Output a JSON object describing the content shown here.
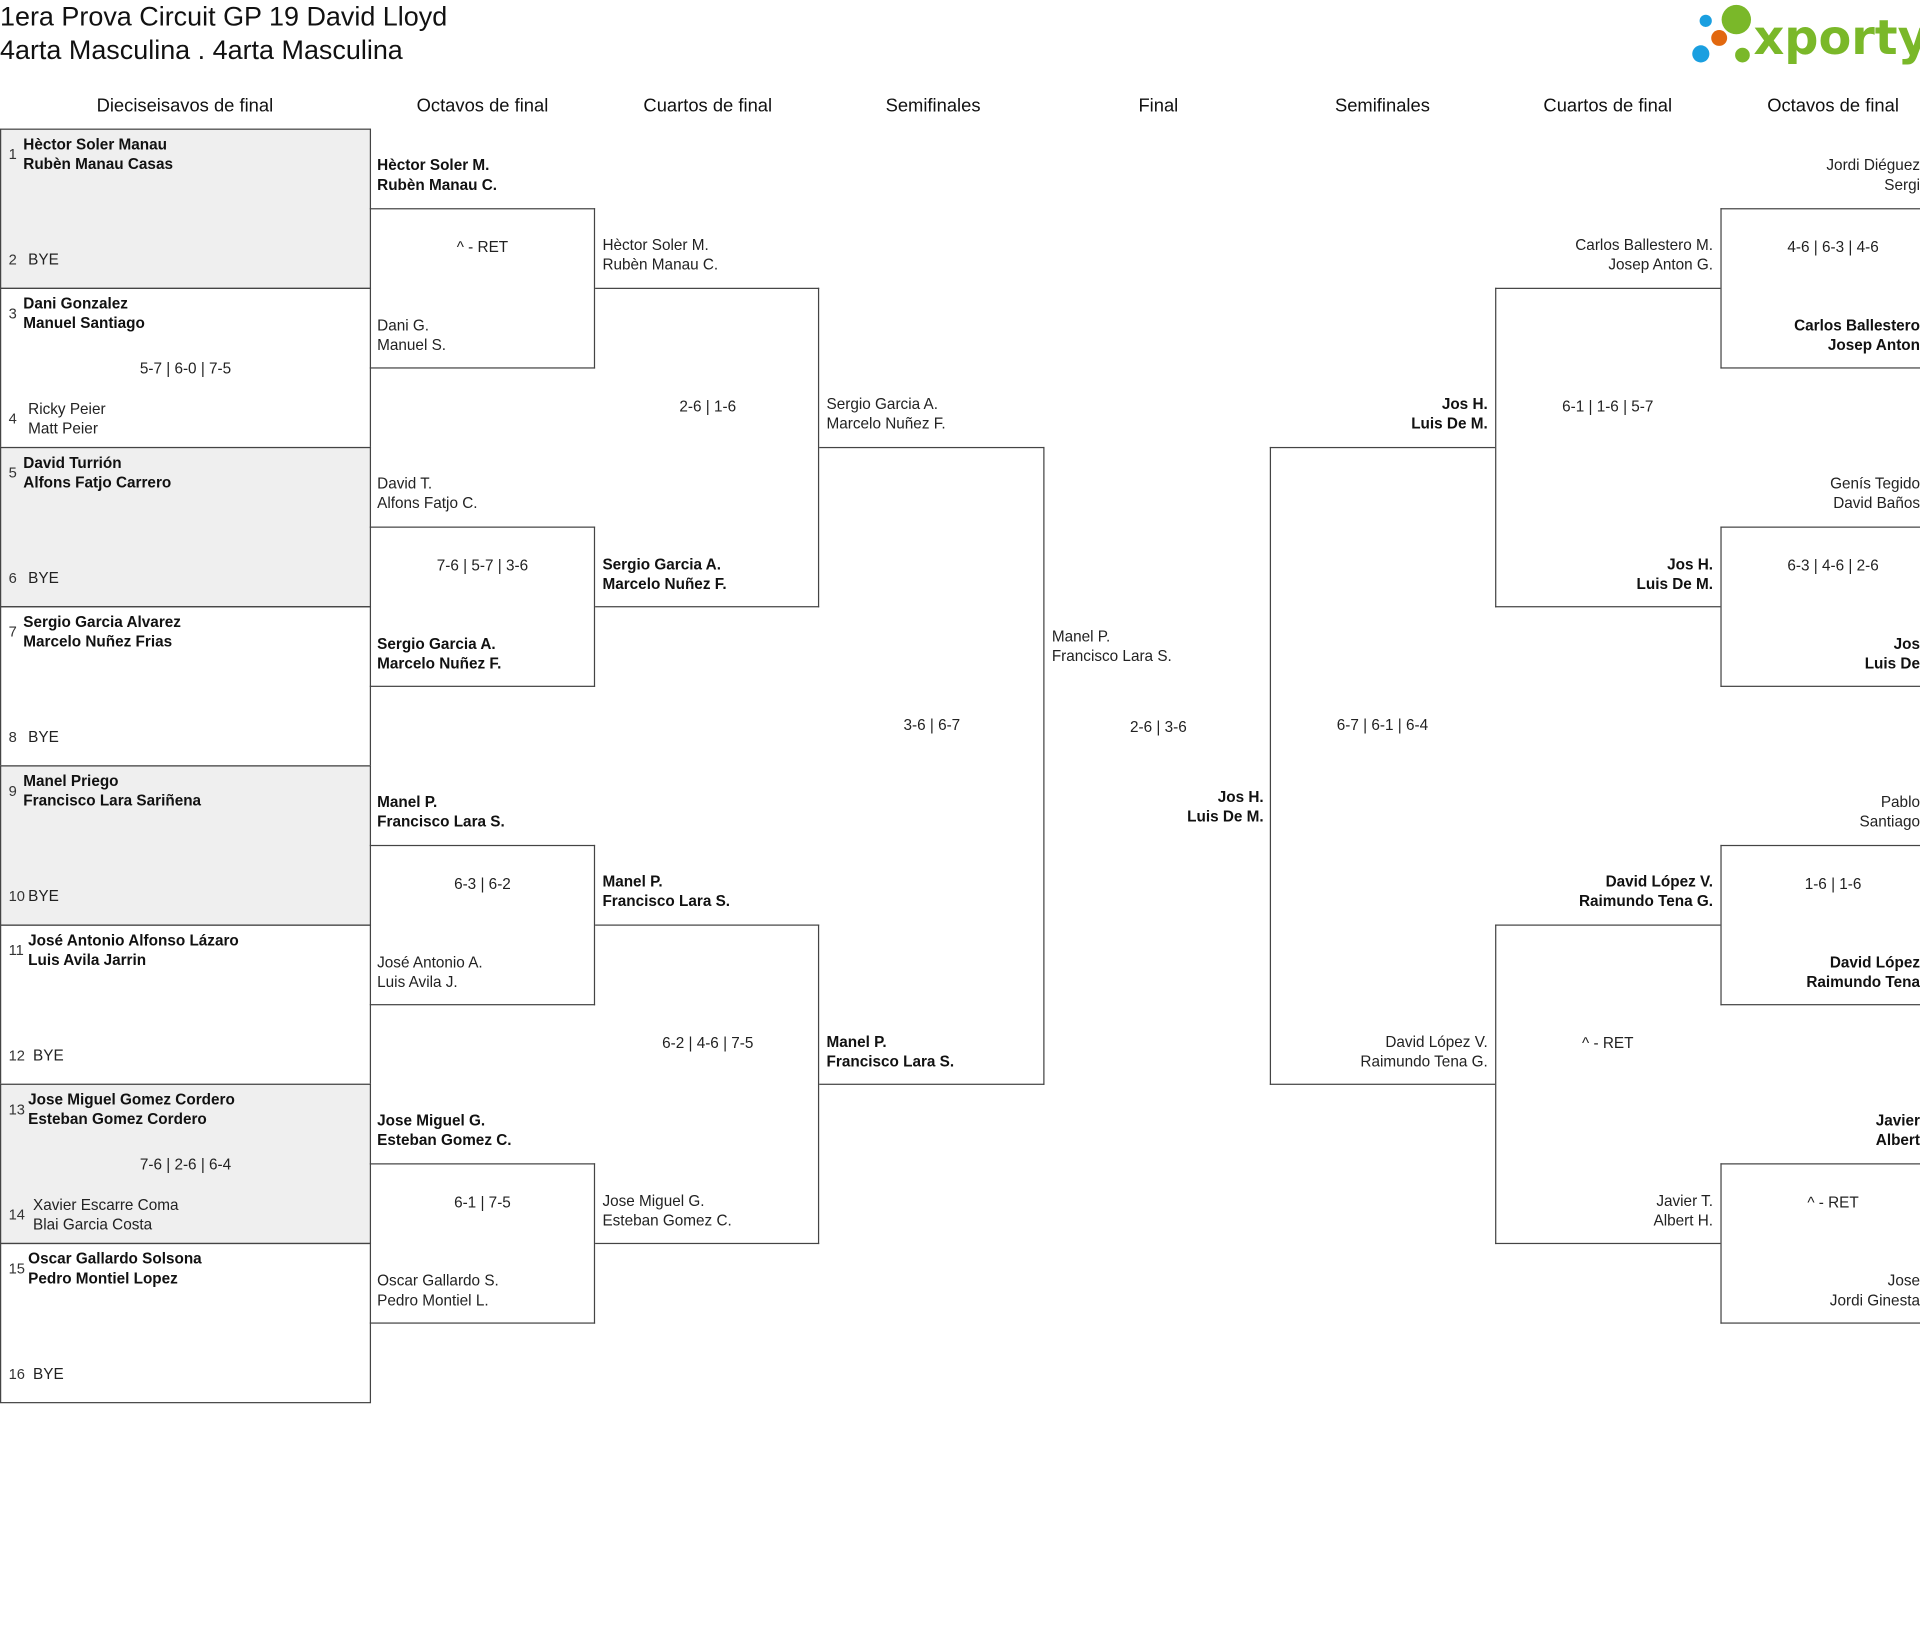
{
  "header": {
    "title": "1era Prova Circuit GP 19 David Lloyd",
    "subtitle": "4arta Masculina . 4arta Masculina"
  },
  "logo": {
    "text": "xporty",
    "colors": {
      "green": "#7ab829",
      "orange": "#e2680f",
      "blue": "#1a9fe0"
    }
  },
  "rounds": [
    "Dieciseisavos de final",
    "Octavos de final",
    "Cuartos de final",
    "Semifinales",
    "Final",
    "Semifinales",
    "Cuartos de final",
    "Octavos de final"
  ],
  "first_round": [
    {
      "shaded": true,
      "top": {
        "seed": "1",
        "names": [
          "Hèctor Soler Manau",
          "Rubèn Manau Casas"
        ],
        "bold": true
      },
      "bottom": {
        "seed": "2",
        "names": [
          "BYE"
        ],
        "bold": false
      },
      "score": ""
    },
    {
      "shaded": false,
      "top": {
        "seed": "3",
        "names": [
          "Dani Gonzalez",
          "Manuel Santiago"
        ],
        "bold": true
      },
      "bottom": {
        "seed": "4",
        "names": [
          "Ricky Peier",
          "Matt Peier"
        ],
        "bold": false
      },
      "score": "5-7 | 6-0 | 7-5"
    },
    {
      "shaded": true,
      "top": {
        "seed": "5",
        "names": [
          "David Turrión",
          "Alfons Fatjo Carrero"
        ],
        "bold": true
      },
      "bottom": {
        "seed": "6",
        "names": [
          "BYE"
        ],
        "bold": false
      },
      "score": ""
    },
    {
      "shaded": false,
      "top": {
        "seed": "7",
        "names": [
          "Sergio Garcia Alvarez",
          "Marcelo Nuñez Frias"
        ],
        "bold": true
      },
      "bottom": {
        "seed": "8",
        "names": [
          "BYE"
        ],
        "bold": false
      },
      "score": ""
    },
    {
      "shaded": true,
      "top": {
        "seed": "9",
        "names": [
          "Manel Priego",
          "Francisco Lara Sariñena"
        ],
        "bold": true
      },
      "bottom": {
        "seed": "10",
        "names": [
          "BYE"
        ],
        "bold": false
      },
      "score": ""
    },
    {
      "shaded": false,
      "top": {
        "seed": "11",
        "names": [
          "José Antonio Alfonso Lázaro",
          "Luis Avila Jarrin"
        ],
        "bold": true
      },
      "bottom": {
        "seed": "12",
        "names": [
          "BYE"
        ],
        "bold": false
      },
      "score": ""
    },
    {
      "shaded": true,
      "top": {
        "seed": "13",
        "names": [
          "Jose Miguel Gomez Cordero",
          "Esteban Gomez Cordero"
        ],
        "bold": true
      },
      "bottom": {
        "seed": "14",
        "names": [
          "Xavier Escarre Coma",
          "Blai Garcia Costa"
        ],
        "bold": false
      },
      "score": "7-6 | 2-6 | 6-4"
    },
    {
      "shaded": false,
      "top": {
        "seed": "15",
        "names": [
          "Oscar Gallardo Solsona",
          "Pedro Montiel Lopez"
        ],
        "bold": true
      },
      "bottom": {
        "seed": "16",
        "names": [
          "BYE"
        ],
        "bold": false
      },
      "score": ""
    }
  ],
  "left": {
    "octavos": [
      {
        "top": {
          "names": [
            "Hèctor Soler M.",
            "Rubèn Manau C."
          ],
          "bold": true
        },
        "bottom": {
          "names": [
            "Dani G.",
            "Manuel S."
          ],
          "bold": false
        },
        "score": "^ - RET"
      },
      {
        "top": {
          "names": [
            "David T.",
            "Alfons Fatjo C."
          ],
          "bold": false
        },
        "bottom": {
          "names": [
            "Sergio Garcia A.",
            "Marcelo Nuñez F."
          ],
          "bold": true
        },
        "score": "7-6 | 5-7 | 3-6"
      },
      {
        "top": {
          "names": [
            "Manel P.",
            "Francisco Lara S."
          ],
          "bold": true
        },
        "bottom": {
          "names": [
            "José Antonio A.",
            "Luis Avila J."
          ],
          "bold": false
        },
        "score": "6-3 | 6-2"
      },
      {
        "top": {
          "names": [
            "Jose Miguel G.",
            "Esteban Gomez C."
          ],
          "bold": true
        },
        "bottom": {
          "names": [
            "Oscar Gallardo S.",
            "Pedro Montiel L."
          ],
          "bold": false
        },
        "score": "6-1 | 7-5"
      }
    ],
    "cuartos": [
      {
        "top": {
          "names": [
            "Hèctor Soler M.",
            "Rubèn Manau C."
          ],
          "bold": false
        },
        "bottom": {
          "names": [
            "Sergio Garcia A.",
            "Marcelo Nuñez F."
          ],
          "bold": true
        },
        "score": "2-6 | 1-6"
      },
      {
        "top": {
          "names": [
            "Manel P.",
            "Francisco Lara S."
          ],
          "bold": true
        },
        "bottom": {
          "names": [
            "Jose Miguel G.",
            "Esteban Gomez C."
          ],
          "bold": false
        },
        "score": "6-2 | 4-6 | 7-5"
      }
    ],
    "semis": [
      {
        "top": {
          "names": [
            "Sergio Garcia A.",
            "Marcelo Nuñez F."
          ],
          "bold": false
        },
        "bottom": {
          "names": [
            "Manel P.",
            "Francisco Lara S."
          ],
          "bold": true
        },
        "score": "3-6 | 6-7"
      }
    ]
  },
  "final": {
    "left": {
      "names": [
        "Manel P.",
        "Francisco Lara S."
      ],
      "bold": false
    },
    "right": {
      "names": [
        "Jos H.",
        "Luis De M."
      ],
      "bold": true
    },
    "score": "2-6 | 3-6"
  },
  "right": {
    "semis": [
      {
        "top": {
          "names": [
            "Jos H.",
            "Luis De M."
          ],
          "bold": true
        },
        "bottom": {
          "names": [
            "David López V.",
            "Raimundo Tena G."
          ],
          "bold": false
        },
        "score": "6-7 | 6-1 | 6-4"
      }
    ],
    "cuartos": [
      {
        "top": {
          "names": [
            "Carlos Ballestero M.",
            "Josep Anton G."
          ],
          "bold": false
        },
        "bottom": {
          "names": [
            "Jos H.",
            "Luis De M."
          ],
          "bold": true
        },
        "score": "6-1 | 1-6 | 5-7"
      },
      {
        "top": {
          "names": [
            "David López V.",
            "Raimundo Tena G."
          ],
          "bold": true
        },
        "bottom": {
          "names": [
            "Javier T.",
            "Albert H."
          ],
          "bold": false
        },
        "score": "^ - RET"
      }
    ],
    "octavos": [
      {
        "top": {
          "names": [
            "Jordi Diéguez",
            "Sergi"
          ],
          "bold": false
        },
        "bottom": {
          "names": [
            "Carlos Ballestero",
            "Josep Anton"
          ],
          "bold": true
        },
        "score": "4-6 | 6-3 | 4-6"
      },
      {
        "top": {
          "names": [
            "Genís Tegido",
            "David Baños"
          ],
          "bold": false
        },
        "bottom": {
          "names": [
            "Jos",
            "Luis De"
          ],
          "bold": true
        },
        "score": "6-3 | 4-6 | 2-6"
      },
      {
        "top": {
          "names": [
            "Pablo",
            "Santiago"
          ],
          "bold": false
        },
        "bottom": {
          "names": [
            "David López",
            "Raimundo Tena"
          ],
          "bold": true
        },
        "score": "1-6 | 1-6"
      },
      {
        "top": {
          "names": [
            "Javier",
            "Albert"
          ],
          "bold": true
        },
        "bottom": {
          "names": [
            "Jose",
            "Jordi Ginesta"
          ],
          "bold": false
        },
        "score": "^ - RET"
      }
    ]
  }
}
